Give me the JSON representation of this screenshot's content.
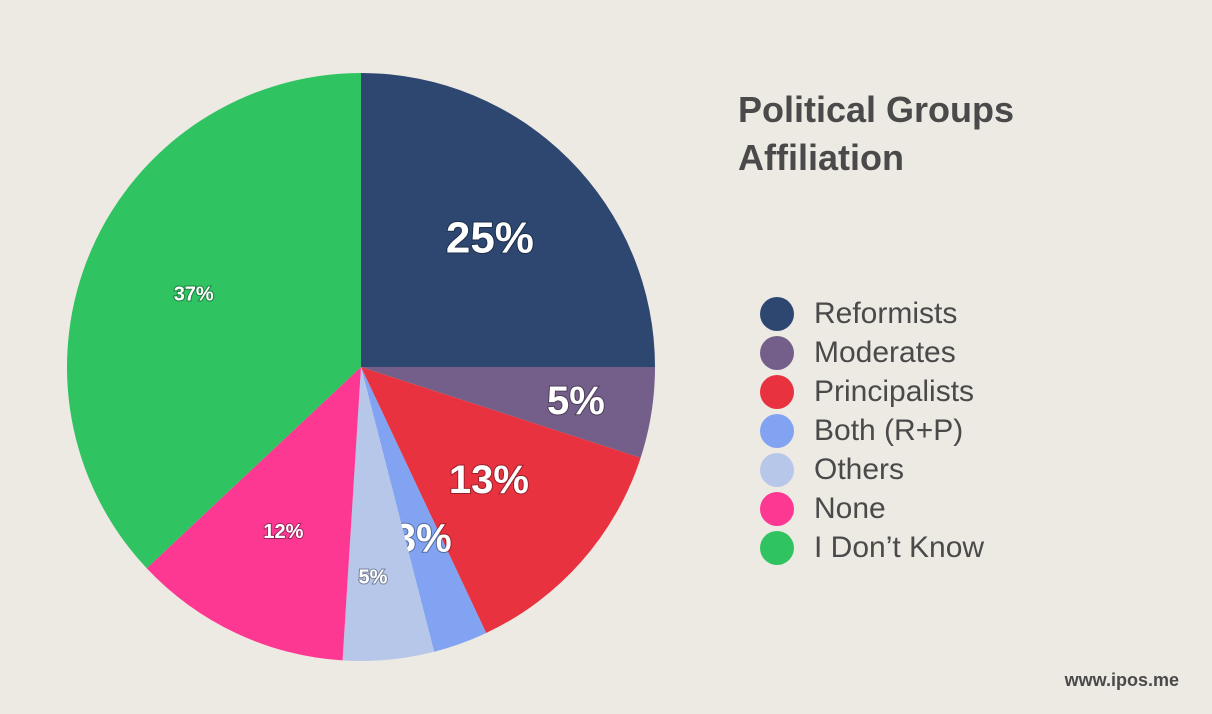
{
  "chart_data": {
    "type": "pie",
    "title": "Political Groups Affiliation",
    "categories": [
      "Reformists",
      "Moderates",
      "Principalists",
      "Both (R+P)",
      "Others",
      "None",
      "I Don’t Know"
    ],
    "values": [
      25,
      5,
      13,
      3,
      5,
      12,
      37
    ],
    "labels": [
      "25%",
      "5%",
      "13%",
      "3%",
      "5%",
      "12%",
      "37%"
    ],
    "colors": [
      "#2d4770",
      "#735f89",
      "#e8323f",
      "#82a3f2",
      "#b7c7ea",
      "#fd3893",
      "#2fc361"
    ],
    "legend_position": "right"
  },
  "title_line1": "Political Groups",
  "title_line2": "Affiliation",
  "footer": "www.ipos.me"
}
